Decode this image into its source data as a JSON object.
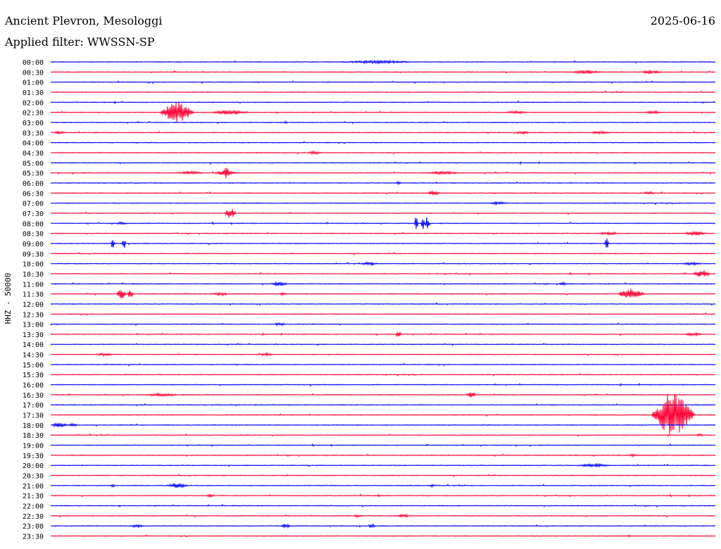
{
  "header": {
    "station": "Ancient Plevron, Mesologgi",
    "date": "2025-06-16",
    "filter_label": "Applied filter:",
    "filter_value": "WWSSN-SP",
    "filter_text": "Applied filter: WWSSN-SP"
  },
  "channel_label": "HHZ - 50000",
  "colors": {
    "even_trace": "#0000ff",
    "odd_trace": "#ff0033",
    "text": "#000000",
    "background": "#ffffff"
  },
  "chart_data": {
    "type": "line",
    "subtype": "helicorder",
    "title": "Ancient Plevron, Mesologgi",
    "date": "2025-06-16",
    "filter": "WWSSN-SP",
    "ylabel": "HHZ - 50000",
    "xlabel": "",
    "grid": false,
    "row_minutes": 30,
    "row_labels": [
      "00:00",
      "00:30",
      "01:00",
      "01:30",
      "02:00",
      "02:30",
      "03:00",
      "03:30",
      "04:00",
      "04:30",
      "05:00",
      "05:30",
      "06:00",
      "06:30",
      "07:00",
      "07:30",
      "08:00",
      "08:30",
      "09:00",
      "09:30",
      "10:00",
      "10:30",
      "11:00",
      "11:30",
      "12:00",
      "12:30",
      "13:00",
      "13:30",
      "14:00",
      "14:30",
      "15:00",
      "15:30",
      "16:00",
      "16:30",
      "17:00",
      "17:30",
      "18:00",
      "18:30",
      "19:00",
      "19:30",
      "20:00",
      "20:30",
      "21:00",
      "21:30",
      "22:00",
      "22:30",
      "23:00",
      "23:30"
    ],
    "series": [
      {
        "name": "00:00",
        "color": "#0000ff",
        "noise": 1,
        "events": [
          {
            "minute": 14.7,
            "amplitude": 2,
            "duration": 4.0
          }
        ]
      },
      {
        "name": "00:30",
        "color": "#ff0033",
        "noise": 1,
        "events": [
          {
            "minute": 24.2,
            "amplitude": 2.5,
            "duration": 1.6
          },
          {
            "minute": 27.1,
            "amplitude": 2,
            "duration": 1.2
          }
        ]
      },
      {
        "name": "01:00",
        "color": "#0000ff",
        "noise": 1,
        "events": []
      },
      {
        "name": "01:30",
        "color": "#ff0033",
        "noise": 1,
        "events": []
      },
      {
        "name": "02:00",
        "color": "#0000ff",
        "noise": 1,
        "events": [
          {
            "minute": 2.9,
            "amplitude": 2,
            "duration": 0.2
          }
        ]
      },
      {
        "name": "02:30",
        "color": "#ff0033",
        "noise": 1,
        "events": [
          {
            "minute": 5.7,
            "amplitude": 14,
            "duration": 1.6
          },
          {
            "minute": 8.1,
            "amplitude": 3,
            "duration": 2.0
          },
          {
            "minute": 21.0,
            "amplitude": 2,
            "duration": 1.2
          },
          {
            "minute": 27.2,
            "amplitude": 2,
            "duration": 1.0
          }
        ]
      },
      {
        "name": "03:00",
        "color": "#0000ff",
        "noise": 1,
        "events": [
          {
            "minute": 10.6,
            "amplitude": 2,
            "duration": 0.2
          }
        ]
      },
      {
        "name": "03:30",
        "color": "#ff0033",
        "noise": 1,
        "events": [
          {
            "minute": 0.4,
            "amplitude": 2,
            "duration": 0.6
          },
          {
            "minute": 21.3,
            "amplitude": 2,
            "duration": 0.8
          },
          {
            "minute": 24.8,
            "amplitude": 2,
            "duration": 1.2
          }
        ]
      },
      {
        "name": "04:00",
        "color": "#0000ff",
        "noise": 1,
        "events": []
      },
      {
        "name": "04:30",
        "color": "#ff0033",
        "noise": 1,
        "events": [
          {
            "minute": 11.9,
            "amplitude": 2,
            "duration": 0.8
          }
        ]
      },
      {
        "name": "05:00",
        "color": "#0000ff",
        "noise": 1,
        "events": []
      },
      {
        "name": "05:30",
        "color": "#ff0033",
        "noise": 1,
        "events": [
          {
            "minute": 6.3,
            "amplitude": 2,
            "duration": 1.6
          },
          {
            "minute": 7.9,
            "amplitude": 3,
            "duration": 1.2
          },
          {
            "minute": 7.9,
            "amplitude": 8,
            "duration": 0.5
          },
          {
            "minute": 17.7,
            "amplitude": 2,
            "duration": 1.8
          }
        ]
      },
      {
        "name": "06:00",
        "color": "#0000ff",
        "noise": 1,
        "events": [
          {
            "minute": 15.7,
            "amplitude": 4,
            "duration": 0.2
          }
        ]
      },
      {
        "name": "06:30",
        "color": "#ff0033",
        "noise": 1,
        "events": [
          {
            "minute": 17.3,
            "amplitude": 3,
            "duration": 0.7
          },
          {
            "minute": 27.0,
            "amplitude": 2,
            "duration": 0.7
          }
        ]
      },
      {
        "name": "07:00",
        "color": "#0000ff",
        "noise": 1,
        "events": [
          {
            "minute": 20.2,
            "amplitude": 2,
            "duration": 1.0
          }
        ]
      },
      {
        "name": "07:30",
        "color": "#ff0033",
        "noise": 1,
        "events": [
          {
            "minute": 8.1,
            "amplitude": 7,
            "duration": 0.6
          }
        ]
      },
      {
        "name": "08:00",
        "color": "#0000ff",
        "noise": 1,
        "events": [
          {
            "minute": 16.5,
            "amplitude": 10,
            "duration": 0.2
          },
          {
            "minute": 16.8,
            "amplitude": 10,
            "duration": 0.2
          },
          {
            "minute": 17.0,
            "amplitude": 10,
            "duration": 0.2
          },
          {
            "minute": 3.2,
            "amplitude": 2,
            "duration": 0.6
          }
        ]
      },
      {
        "name": "08:30",
        "color": "#ff0033",
        "noise": 1,
        "events": [
          {
            "minute": 25.2,
            "amplitude": 2,
            "duration": 1.2
          },
          {
            "minute": 29.1,
            "amplitude": 3,
            "duration": 1.2
          }
        ]
      },
      {
        "name": "09:00",
        "color": "#0000ff",
        "noise": 1,
        "events": [
          {
            "minute": 2.8,
            "amplitude": 8,
            "duration": 0.2
          },
          {
            "minute": 3.3,
            "amplitude": 8,
            "duration": 0.2
          },
          {
            "minute": 25.1,
            "amplitude": 8,
            "duration": 0.2
          }
        ]
      },
      {
        "name": "09:30",
        "color": "#ff0033",
        "noise": 1,
        "events": []
      },
      {
        "name": "10:00",
        "color": "#0000ff",
        "noise": 1,
        "events": [
          {
            "minute": 14.4,
            "amplitude": 2,
            "duration": 1.0
          },
          {
            "minute": 28.9,
            "amplitude": 2,
            "duration": 1.2
          }
        ]
      },
      {
        "name": "10:30",
        "color": "#ff0033",
        "noise": 1,
        "events": [
          {
            "minute": 29.4,
            "amplitude": 5,
            "duration": 0.9
          }
        ]
      },
      {
        "name": "11:00",
        "color": "#0000ff",
        "noise": 1,
        "events": [
          {
            "minute": 10.3,
            "amplitude": 3,
            "duration": 0.9
          },
          {
            "minute": 23.1,
            "amplitude": 2,
            "duration": 0.5
          }
        ]
      },
      {
        "name": "11:30",
        "color": "#ff0033",
        "noise": 1,
        "events": [
          {
            "minute": 3.2,
            "amplitude": 7,
            "duration": 0.5
          },
          {
            "minute": 3.6,
            "amplitude": 6,
            "duration": 0.3
          },
          {
            "minute": 26.2,
            "amplitude": 8,
            "duration": 1.3
          },
          {
            "minute": 7.7,
            "amplitude": 2,
            "duration": 1.0
          },
          {
            "minute": 10.5,
            "amplitude": 2,
            "duration": 0.4
          }
        ]
      },
      {
        "name": "12:00",
        "color": "#0000ff",
        "noise": 1,
        "events": []
      },
      {
        "name": "12:30",
        "color": "#ff0033",
        "noise": 1,
        "events": []
      },
      {
        "name": "13:00",
        "color": "#0000ff",
        "noise": 1,
        "events": [
          {
            "minute": 10.3,
            "amplitude": 2,
            "duration": 0.8
          }
        ]
      },
      {
        "name": "13:30",
        "color": "#ff0033",
        "noise": 1,
        "events": [
          {
            "minute": 15.7,
            "amplitude": 5,
            "duration": 0.3
          },
          {
            "minute": 29.0,
            "amplitude": 2,
            "duration": 1.0
          }
        ]
      },
      {
        "name": "14:00",
        "color": "#0000ff",
        "noise": 1,
        "events": []
      },
      {
        "name": "14:30",
        "color": "#ff0033",
        "noise": 1,
        "events": [
          {
            "minute": 2.4,
            "amplitude": 2,
            "duration": 1.0
          },
          {
            "minute": 9.7,
            "amplitude": 2,
            "duration": 0.8
          }
        ]
      },
      {
        "name": "15:00",
        "color": "#0000ff",
        "noise": 1,
        "events": []
      },
      {
        "name": "15:30",
        "color": "#ff0033",
        "noise": 1,
        "events": []
      },
      {
        "name": "16:00",
        "color": "#0000ff",
        "noise": 1,
        "events": []
      },
      {
        "name": "16:30",
        "color": "#ff0033",
        "noise": 1,
        "events": [
          {
            "minute": 19.0,
            "amplitude": 4,
            "duration": 0.5
          },
          {
            "minute": 5.0,
            "amplitude": 2,
            "duration": 1.8
          }
        ]
      },
      {
        "name": "17:00",
        "color": "#0000ff",
        "noise": 1,
        "events": []
      },
      {
        "name": "17:30",
        "color": "#ff0033",
        "noise": 1,
        "events": [
          {
            "minute": 28.1,
            "amplitude": 32,
            "duration": 2.0
          }
        ]
      },
      {
        "name": "18:00",
        "color": "#0000ff",
        "noise": 1,
        "events": [
          {
            "minute": 0.4,
            "amplitude": 3,
            "duration": 0.9
          },
          {
            "minute": 1.0,
            "amplitude": 2,
            "duration": 0.6
          }
        ]
      },
      {
        "name": "18:30",
        "color": "#ff0033",
        "noise": 1,
        "events": [
          {
            "minute": 29.3,
            "amplitude": 2,
            "duration": 0.4
          }
        ]
      },
      {
        "name": "19:00",
        "color": "#0000ff",
        "noise": 1,
        "events": []
      },
      {
        "name": "19:30",
        "color": "#ff0033",
        "noise": 1,
        "events": [
          {
            "minute": 26.3,
            "amplitude": 2,
            "duration": 0.5
          }
        ]
      },
      {
        "name": "20:00",
        "color": "#0000ff",
        "noise": 1,
        "events": [
          {
            "minute": 24.5,
            "amplitude": 2,
            "duration": 2.0
          }
        ]
      },
      {
        "name": "20:30",
        "color": "#ff0033",
        "noise": 1,
        "events": []
      },
      {
        "name": "21:00",
        "color": "#0000ff",
        "noise": 1,
        "events": [
          {
            "minute": 2.8,
            "amplitude": 2,
            "duration": 0.3
          },
          {
            "minute": 5.7,
            "amplitude": 3,
            "duration": 1.1
          },
          {
            "minute": 17.2,
            "amplitude": 2,
            "duration": 0.3
          }
        ]
      },
      {
        "name": "21:30",
        "color": "#ff0033",
        "noise": 1,
        "events": [
          {
            "minute": 7.2,
            "amplitude": 2,
            "duration": 0.5
          },
          {
            "minute": 14.8,
            "amplitude": 2,
            "duration": 0.2
          }
        ]
      },
      {
        "name": "22:00",
        "color": "#0000ff",
        "noise": 1,
        "events": []
      },
      {
        "name": "22:30",
        "color": "#ff0033",
        "noise": 1,
        "events": [
          {
            "minute": 13.9,
            "amplitude": 2,
            "duration": 0.6
          },
          {
            "minute": 15.9,
            "amplitude": 2,
            "duration": 0.9
          }
        ]
      },
      {
        "name": "23:00",
        "color": "#0000ff",
        "noise": 1,
        "events": [
          {
            "minute": 3.9,
            "amplitude": 2,
            "duration": 0.8
          },
          {
            "minute": 10.6,
            "amplitude": 3,
            "duration": 0.5
          },
          {
            "minute": 14.5,
            "amplitude": 3,
            "duration": 0.4
          }
        ]
      },
      {
        "name": "23:30",
        "color": "#ff0033",
        "noise": 1,
        "events": [
          {
            "minute": 26.1,
            "amplitude": 2,
            "duration": 0.2
          }
        ]
      }
    ]
  }
}
